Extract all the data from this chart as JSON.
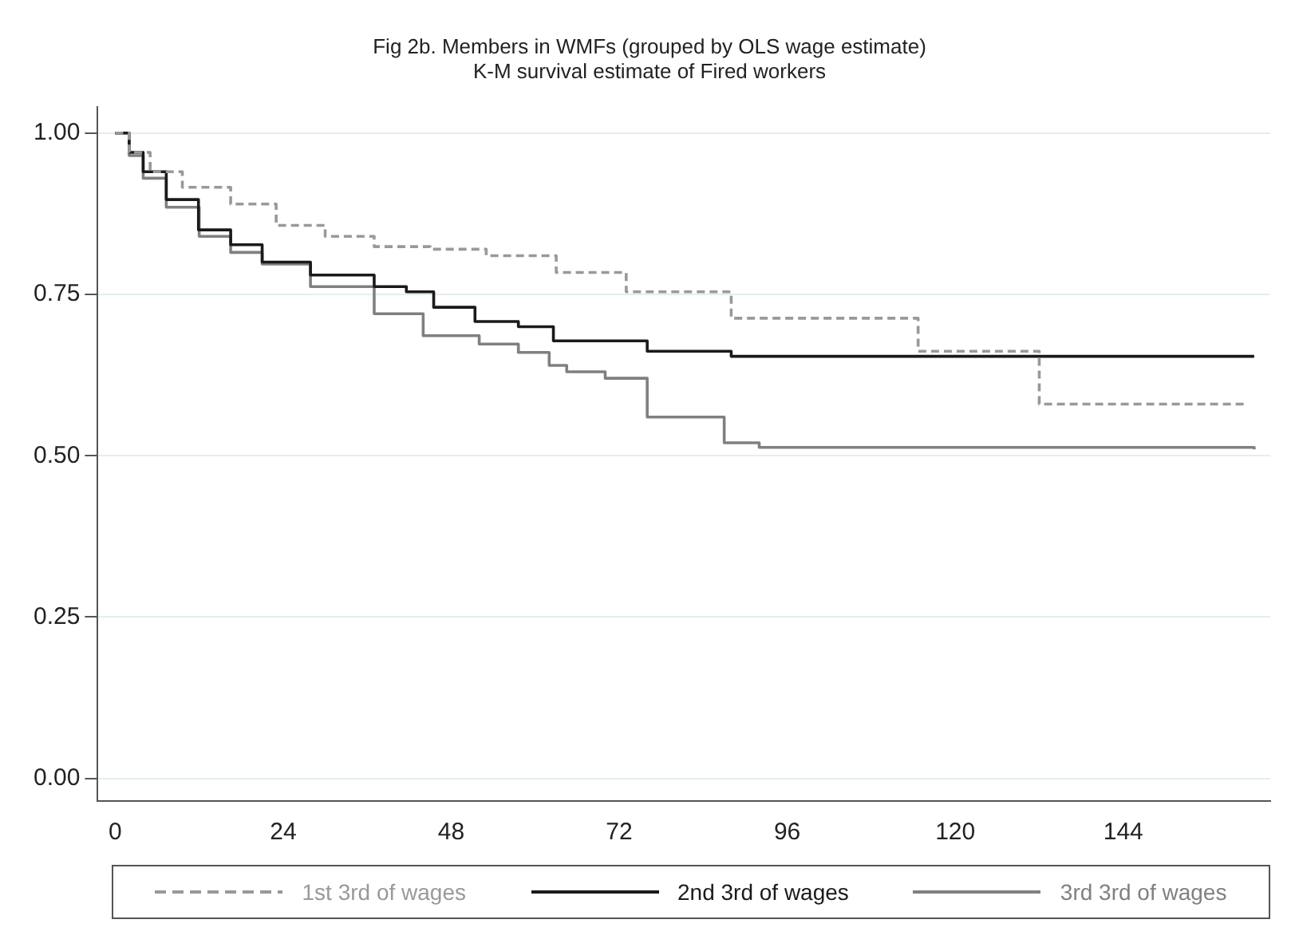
{
  "chart_data": {
    "type": "step",
    "title": [
      "Fig 2b. Members in WMFs (grouped by OLS wage estimate)",
      "K-M survival estimate of Fired workers"
    ],
    "xlim": [
      -2.5,
      165
    ],
    "xticks": [
      0,
      24,
      48,
      72,
      96,
      120,
      144
    ],
    "ylim": [
      -0.035,
      1.04
    ],
    "yticks": [
      {
        "value": 0,
        "label": "0.00"
      },
      {
        "value": 0.25,
        "label": "0.25"
      },
      {
        "value": 0.5,
        "label": "0.50"
      },
      {
        "value": 0.75,
        "label": "0.75"
      },
      {
        "value": 1,
        "label": "1.00"
      }
    ],
    "grid": "y",
    "legend": "bottom",
    "marker": "none",
    "series": [
      {
        "name": "1st 3rd of wages",
        "color": "#999999",
        "line_style": "dashed",
        "x": [
          0,
          2,
          5,
          9.6,
          16.5,
          23,
          30,
          37,
          45,
          53,
          63,
          73,
          76.6,
          88,
          114.7,
          132,
          161.6
        ],
        "values": [
          1,
          0.97,
          0.94,
          0.916,
          0.89,
          0.857,
          0.84,
          0.824,
          0.82,
          0.81,
          0.784,
          0.754,
          0.754,
          0.713,
          0.662,
          0.58,
          0.58
        ]
      },
      {
        "name": "2nd 3rd of wages",
        "color": "#1a1a1a",
        "line_style": "solid",
        "x": [
          0,
          2,
          4,
          7.3,
          11.9,
          16.5,
          21,
          27.9,
          37,
          41.6,
          45.5,
          51.4,
          57.6,
          62.6,
          76,
          88,
          162.7
        ],
        "values": [
          1,
          0.97,
          0.94,
          0.897,
          0.85,
          0.827,
          0.8,
          0.78,
          0.762,
          0.754,
          0.73,
          0.708,
          0.7,
          0.678,
          0.662,
          0.654,
          0.654
        ]
      },
      {
        "name": "3rd 3rd of wages",
        "color": "#808080",
        "line_style": "solid",
        "x": [
          0,
          2,
          4,
          7.3,
          12,
          16.5,
          21,
          27.9,
          37,
          44,
          52,
          57.6,
          62,
          64.5,
          70,
          76,
          87,
          92,
          162.7
        ],
        "values": [
          1,
          0.965,
          0.93,
          0.885,
          0.84,
          0.815,
          0.797,
          0.762,
          0.72,
          0.686,
          0.673,
          0.66,
          0.64,
          0.63,
          0.62,
          0.56,
          0.52,
          0.513,
          0.51
        ]
      }
    ]
  }
}
